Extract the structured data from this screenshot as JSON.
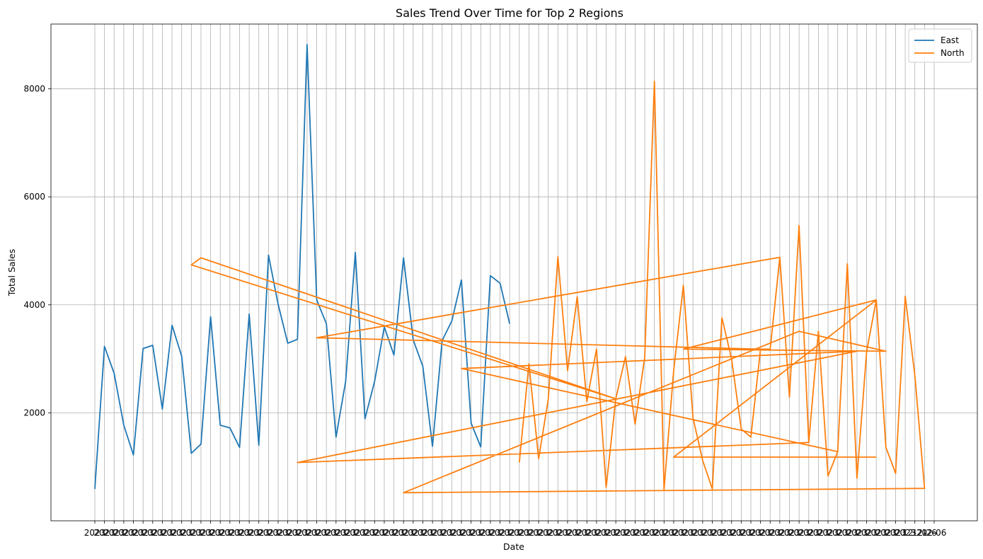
{
  "chart_data": {
    "type": "line",
    "title": "Sales Trend Over Time for Top 2 Regions",
    "xlabel": "Date",
    "ylabel": "Total Sales",
    "ylim": [
      0,
      9200
    ],
    "yticks": [
      2000,
      4000,
      6000,
      8000
    ],
    "grid": true,
    "legend_position": "top-right",
    "x_tick_count": 88,
    "x_tick_labels": [
      "2023",
      "2023",
      "2023",
      "2023",
      "2023",
      "2023",
      "2023",
      "2023",
      "2023",
      "2023",
      "2023",
      "2023",
      "2023",
      "2023",
      "2023",
      "2023",
      "2023",
      "2023",
      "2023",
      "2023",
      "2023",
      "2023",
      "2023",
      "2023",
      "2023",
      "2023",
      "2023",
      "2023",
      "2023",
      "2023",
      "2023",
      "2023",
      "2023",
      "2023",
      "2023",
      "2023",
      "2023",
      "2023",
      "2023",
      "2023",
      "2023",
      "2023",
      "2023",
      "2023",
      "2023",
      "2023",
      "2023",
      "2023",
      "2023",
      "2023",
      "2023",
      "2023",
      "2023",
      "2023",
      "2023",
      "2023",
      "2023",
      "2023",
      "2023",
      "2023",
      "2023",
      "2023",
      "2023",
      "2023",
      "2023",
      "2023",
      "2023",
      "2023",
      "2023",
      "2023",
      "2023",
      "2023",
      "2023",
      "2023",
      "2023",
      "2023",
      "2023",
      "2023",
      "2023",
      "2023",
      "2023",
      "2023",
      "2023",
      "2023",
      "2023",
      "12-20",
      "12-26",
      "12-06"
    ],
    "series": [
      {
        "name": "East",
        "color": "#1f77b4",
        "x": [
          0,
          1,
          2,
          3,
          4,
          5,
          6,
          7,
          8,
          9,
          10,
          11,
          12,
          13,
          14,
          15,
          16,
          17,
          18,
          19,
          20,
          21,
          22,
          23,
          24,
          25,
          26,
          27,
          28,
          29,
          30,
          31,
          32,
          33,
          34,
          35,
          36,
          37,
          38,
          39,
          40,
          41,
          42,
          43
        ],
        "values": [
          590,
          3230,
          2730,
          1770,
          1220,
          3190,
          3250,
          2070,
          3620,
          3050,
          1250,
          1420,
          3780,
          1770,
          1720,
          1360,
          3830,
          1400,
          4920,
          4010,
          3290,
          3360,
          8820,
          4090,
          3650,
          1550,
          2580,
          4970,
          1890,
          2580,
          3590,
          3070,
          4870,
          3350,
          2860,
          1380,
          3340,
          3700,
          4460,
          1810,
          1370,
          4540,
          4400,
          3650
        ]
      },
      {
        "name": "North",
        "color": "#ff7f0e",
        "x": [
          44,
          45,
          46,
          47,
          48,
          49,
          50,
          51,
          52,
          53,
          54,
          10,
          11,
          54,
          55,
          56,
          57,
          58,
          59,
          60,
          61,
          62,
          63,
          64,
          65,
          66,
          67,
          68,
          69,
          70,
          71,
          23,
          69,
          70,
          71,
          72,
          73,
          74,
          75,
          76,
          77,
          38,
          79,
          21,
          74,
          75,
          76,
          77,
          78,
          79,
          80,
          81,
          82,
          83,
          84,
          85,
          86,
          32,
          73,
          82,
          61,
          81,
          60,
          81
        ],
        "values": [
          1080,
          2910,
          1150,
          2250,
          4890,
          2780,
          4150,
          2210,
          3180,
          620,
          2260,
          4740,
          4870,
          2260,
          3040,
          1790,
          3030,
          8140,
          580,
          2780,
          4360,
          1910,
          1120,
          590,
          3760,
          3000,
          1700,
          1550,
          3180,
          3180,
          4880,
          3390,
          3180,
          3180,
          4880,
          2290,
          5470,
          1450,
          3510,
          830,
          1280,
          2820,
          3140,
          1080,
          1450,
          3510,
          830,
          1280,
          4760,
          790,
          3140,
          4090,
          1360,
          880,
          4160,
          2690,
          600,
          520,
          3510,
          3140,
          3180,
          4090,
          1180,
          1180
        ]
      }
    ]
  }
}
